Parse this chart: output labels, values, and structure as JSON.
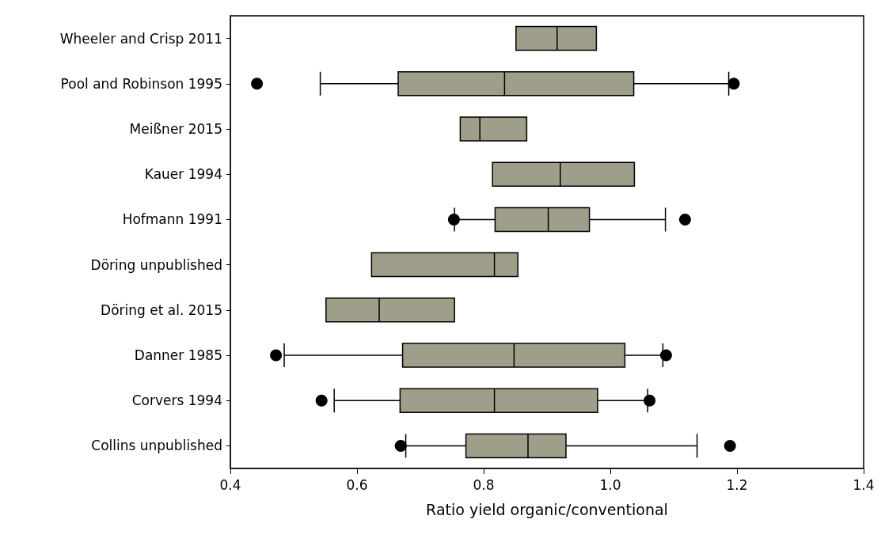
{
  "chart_data": {
    "type": "box",
    "orientation": "horizontal",
    "xlabel": "Ratio yield organic/conventional",
    "categories": [
      "Wheeler and Crisp 2011",
      "Pool and Robinson 1995",
      "Meißner 2015",
      "Kauer 1994",
      "Hofmann 1991",
      "Döring unpublished",
      "Döring et al. 2015",
      "Danner 1985",
      "Corvers 1994",
      "Collins unpublished"
    ],
    "color": "#9e9e8a",
    "boxes": [
      {
        "low": 0.851,
        "q1": 0.851,
        "median": 0.916,
        "q3": 0.978,
        "high": 0.978
      },
      {
        "low": 0.542,
        "q1": 0.665,
        "median": 0.833,
        "q3": 1.037,
        "high": 1.187,
        "outliers": [
          0.442,
          1.195
        ]
      },
      {
        "low": 0.763,
        "q1": 0.763,
        "median": 0.794,
        "q3": 0.868,
        "high": 0.868
      },
      {
        "low": 0.814,
        "q1": 0.814,
        "median": 0.921,
        "q3": 1.038,
        "high": 1.038
      },
      {
        "low": 0.754,
        "q1": 0.818,
        "median": 0.902,
        "q3": 0.967,
        "high": 1.087,
        "outliers": [
          0.753,
          1.118
        ]
      },
      {
        "low": 0.623,
        "q1": 0.623,
        "median": 0.817,
        "q3": 0.854,
        "high": 0.854
      },
      {
        "low": 0.551,
        "q1": 0.551,
        "median": 0.635,
        "q3": 0.754,
        "high": 0.754
      },
      {
        "low": 0.485,
        "q1": 0.672,
        "median": 0.848,
        "q3": 1.023,
        "high": 1.083,
        "outliers": [
          0.472,
          1.088
        ]
      },
      {
        "low": 0.564,
        "q1": 0.668,
        "median": 0.817,
        "q3": 0.98,
        "high": 1.059,
        "outliers": [
          0.544,
          1.062
        ]
      },
      {
        "low": 0.677,
        "q1": 0.772,
        "median": 0.87,
        "q3": 0.93,
        "high": 1.137,
        "outliers": [
          0.669,
          1.189
        ]
      }
    ],
    "xlim": [
      0.4,
      1.4
    ],
    "xticks": [
      0.4,
      0.6,
      0.8,
      {
        "value": 1,
        "label": "1.0"
      },
      1.2,
      1.4
    ],
    "grid": false,
    "marker": "circle"
  }
}
